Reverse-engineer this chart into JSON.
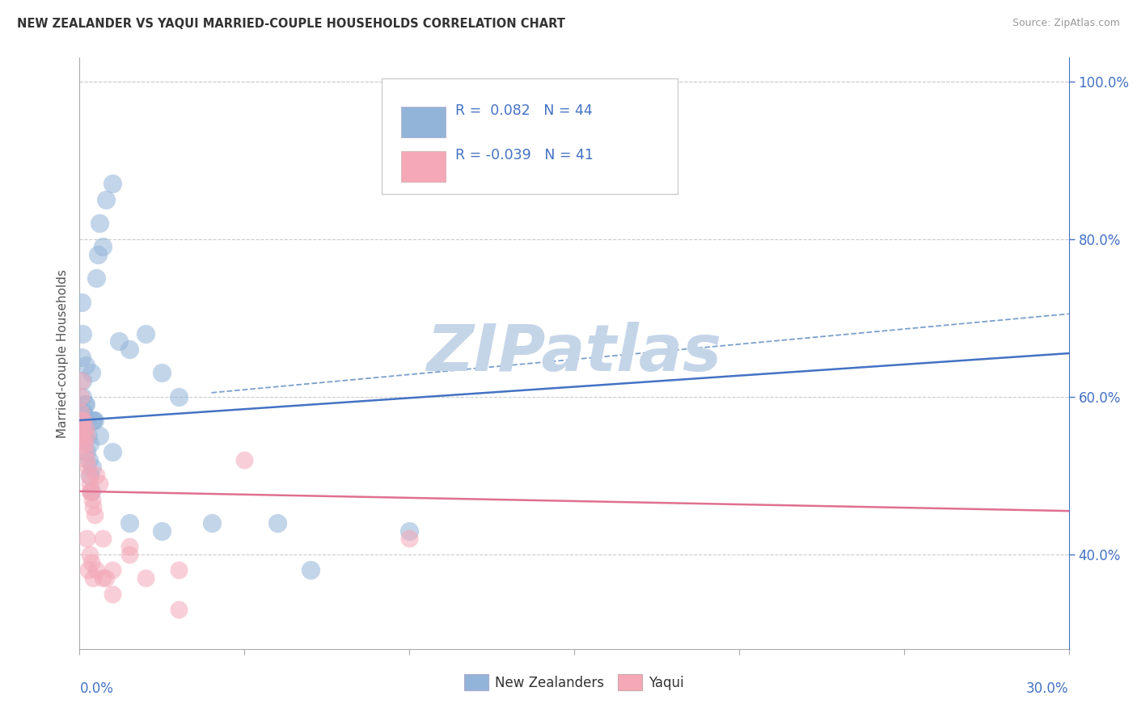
{
  "title": "NEW ZEALANDER VS YAQUI MARRIED-COUPLE HOUSEHOLDS CORRELATION CHART",
  "source": "Source: ZipAtlas.com",
  "ylabel": "Married-couple Households",
  "legend_blue": {
    "label": "New Zealanders",
    "R": "0.082",
    "N": "44"
  },
  "legend_pink": {
    "label": "Yaqui",
    "R": "-0.039",
    "N": "41"
  },
  "xlim": [
    0.0,
    30.0
  ],
  "ylim": [
    28.0,
    103.0
  ],
  "yticks": [
    40.0,
    60.0,
    80.0,
    100.0
  ],
  "xticks": [
    0,
    5,
    10,
    15,
    20,
    25,
    30
  ],
  "blue_line": [
    0.0,
    57.0,
    30.0,
    65.5
  ],
  "pink_line": [
    0.0,
    48.0,
    30.0,
    45.5
  ],
  "dash_line": [
    4.0,
    60.5,
    30.0,
    70.5
  ],
  "blue_scatter_x": [
    0.05,
    0.06,
    0.07,
    0.08,
    0.09,
    0.1,
    0.1,
    0.12,
    0.13,
    0.15,
    0.15,
    0.18,
    0.2,
    0.22,
    0.25,
    0.28,
    0.3,
    0.32,
    0.35,
    0.38,
    0.4,
    0.45,
    0.5,
    0.55,
    0.6,
    0.7,
    0.8,
    1.0,
    1.2,
    1.5,
    2.0,
    2.5,
    3.0,
    0.18,
    0.35,
    0.4,
    0.6,
    1.0,
    1.5,
    2.5,
    4.0,
    6.0,
    7.0,
    10.0
  ],
  "blue_scatter_y": [
    57.0,
    72.0,
    65.0,
    68.0,
    58.0,
    62.0,
    60.0,
    58.0,
    55.0,
    56.0,
    59.0,
    64.0,
    57.0,
    53.0,
    55.0,
    52.0,
    54.0,
    50.0,
    48.0,
    51.0,
    57.0,
    57.0,
    75.0,
    78.0,
    82.0,
    79.0,
    85.0,
    87.0,
    67.0,
    66.0,
    68.0,
    63.0,
    60.0,
    59.0,
    63.0,
    57.0,
    55.0,
    53.0,
    44.0,
    43.0,
    44.0,
    44.0,
    38.0,
    43.0
  ],
  "pink_scatter_x": [
    0.04,
    0.05,
    0.06,
    0.07,
    0.08,
    0.1,
    0.1,
    0.12,
    0.15,
    0.15,
    0.18,
    0.2,
    0.22,
    0.25,
    0.28,
    0.3,
    0.32,
    0.35,
    0.38,
    0.4,
    0.45,
    0.5,
    0.6,
    0.7,
    0.8,
    1.0,
    1.5,
    2.0,
    3.0,
    0.2,
    0.25,
    0.3,
    0.35,
    0.4,
    0.5,
    0.7,
    1.0,
    1.5,
    3.0,
    5.0,
    10.0
  ],
  "pink_scatter_y": [
    60.0,
    58.0,
    62.0,
    57.0,
    55.0,
    56.0,
    54.0,
    57.0,
    53.0,
    54.0,
    56.0,
    55.0,
    52.0,
    51.0,
    50.0,
    48.0,
    49.0,
    48.0,
    47.0,
    46.0,
    45.0,
    50.0,
    49.0,
    42.0,
    37.0,
    38.0,
    40.0,
    37.0,
    38.0,
    42.0,
    38.0,
    40.0,
    39.0,
    37.0,
    38.0,
    37.0,
    35.0,
    41.0,
    33.0,
    52.0,
    42.0
  ],
  "blue_color": "#92b4d8",
  "pink_color": "#f4a8b8",
  "blue_line_color": "#4472c4",
  "pink_line_color": "#e07090",
  "dash_line_color": "#7aa0cc",
  "watermark_text": "ZIPatlas",
  "watermark_color": "#c5d5e8",
  "background_color": "#ffffff",
  "grid_color": "#cccccc",
  "title_color": "#333333",
  "source_color": "#999999",
  "axis_label_color": "#4472c4",
  "ylabel_color": "#555555",
  "legend_border_color": "#cccccc"
}
